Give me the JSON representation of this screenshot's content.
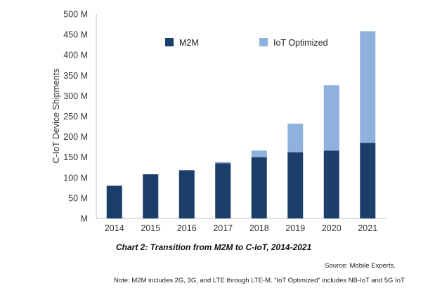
{
  "chart_data": {
    "type": "bar",
    "stacked": true,
    "title": "Chart 2:   Transition from M2M to C-IoT, 2014-2021",
    "xlabel": "",
    "ylabel": "C-IoT Device Shipments",
    "categories": [
      "2014",
      "2015",
      "2016",
      "2017",
      "2018",
      "2019",
      "2020",
      "2021"
    ],
    "series": [
      {
        "name": "M2M",
        "color": "#1c3e6b",
        "values": [
          80,
          108,
          118,
          135,
          150,
          162,
          166,
          185
        ]
      },
      {
        "name": "IoT Optimized",
        "color": "#8fb1de",
        "values": [
          0,
          0,
          0,
          3,
          16,
          70,
          160,
          273
        ]
      }
    ],
    "ylim": [
      0,
      500
    ],
    "yticks": [
      0,
      50,
      100,
      150,
      200,
      250,
      300,
      350,
      400,
      450,
      500
    ],
    "ytick_labels": [
      "M",
      "50 M",
      "100 M",
      "150 M",
      "200 M",
      "250 M",
      "300 M",
      "350 M",
      "400 M",
      "450 M",
      "500 M"
    ],
    "grid": false,
    "legend": "top",
    "source": "Source:  Mobile Experts.",
    "note": "Note:  M2M includes 2G, 3G, and LTE through LTE-M.   “IoT Optimized” includes NB-IoT and 5G IoT"
  }
}
